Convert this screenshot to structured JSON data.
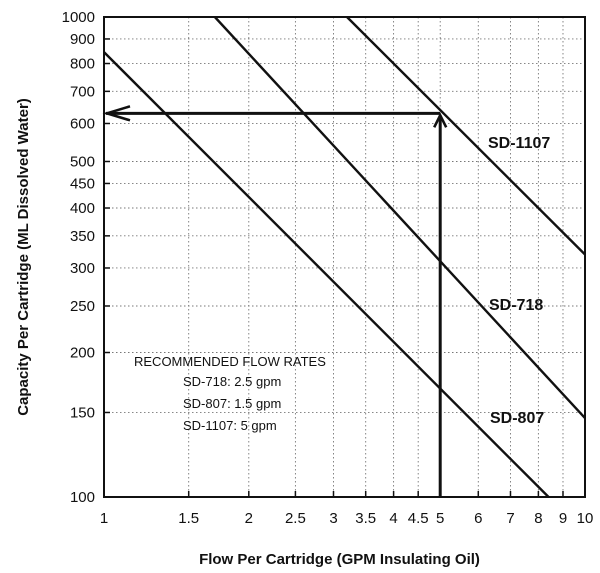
{
  "chart_data": {
    "type": "line",
    "title": "",
    "xlabel": "Flow Per Cartridge (GPM Insulating Oil)",
    "ylabel": "Capacity Per Cartridge (ML Dissolved Water)",
    "xscale": "log",
    "yscale": "log",
    "xlim": [
      1,
      10
    ],
    "ylim": [
      100,
      1000
    ],
    "grid": true,
    "x_ticks": [
      1,
      1.5,
      2,
      2.5,
      3,
      3.5,
      4,
      4.5,
      5,
      6,
      7,
      8,
      9,
      10
    ],
    "x_tick_labels": [
      "1",
      "1.5",
      "2",
      "2.5",
      "3",
      "3.5",
      "4",
      "4.5",
      "5",
      "6",
      "7",
      "8",
      "9",
      "10"
    ],
    "y_ticks": [
      100,
      150,
      200,
      250,
      300,
      350,
      400,
      450,
      500,
      600,
      700,
      800,
      900,
      1000
    ],
    "y_tick_labels": [
      "100",
      "150",
      "200",
      "250",
      "300",
      "350",
      "400",
      "450",
      "500",
      "600",
      "700",
      "800",
      "900",
      "1000"
    ],
    "series": [
      {
        "name": "SD-807",
        "points": [
          [
            1,
            845
          ],
          [
            8.4,
            100
          ]
        ]
      },
      {
        "name": "SD-718",
        "points": [
          [
            1.7,
            1000
          ],
          [
            10,
            146
          ]
        ]
      },
      {
        "name": "SD-1107",
        "points": [
          [
            3.2,
            1000
          ],
          [
            10,
            320
          ]
        ]
      }
    ],
    "annotations": {
      "read_example": {
        "x": 5,
        "y": 630
      },
      "recommended": {
        "title": "RECOMMENDED FLOW RATES",
        "lines": [
          "SD-718: 2.5 gpm",
          "SD-807: 1.5 gpm",
          "SD-1107: 5 gpm"
        ]
      }
    }
  }
}
